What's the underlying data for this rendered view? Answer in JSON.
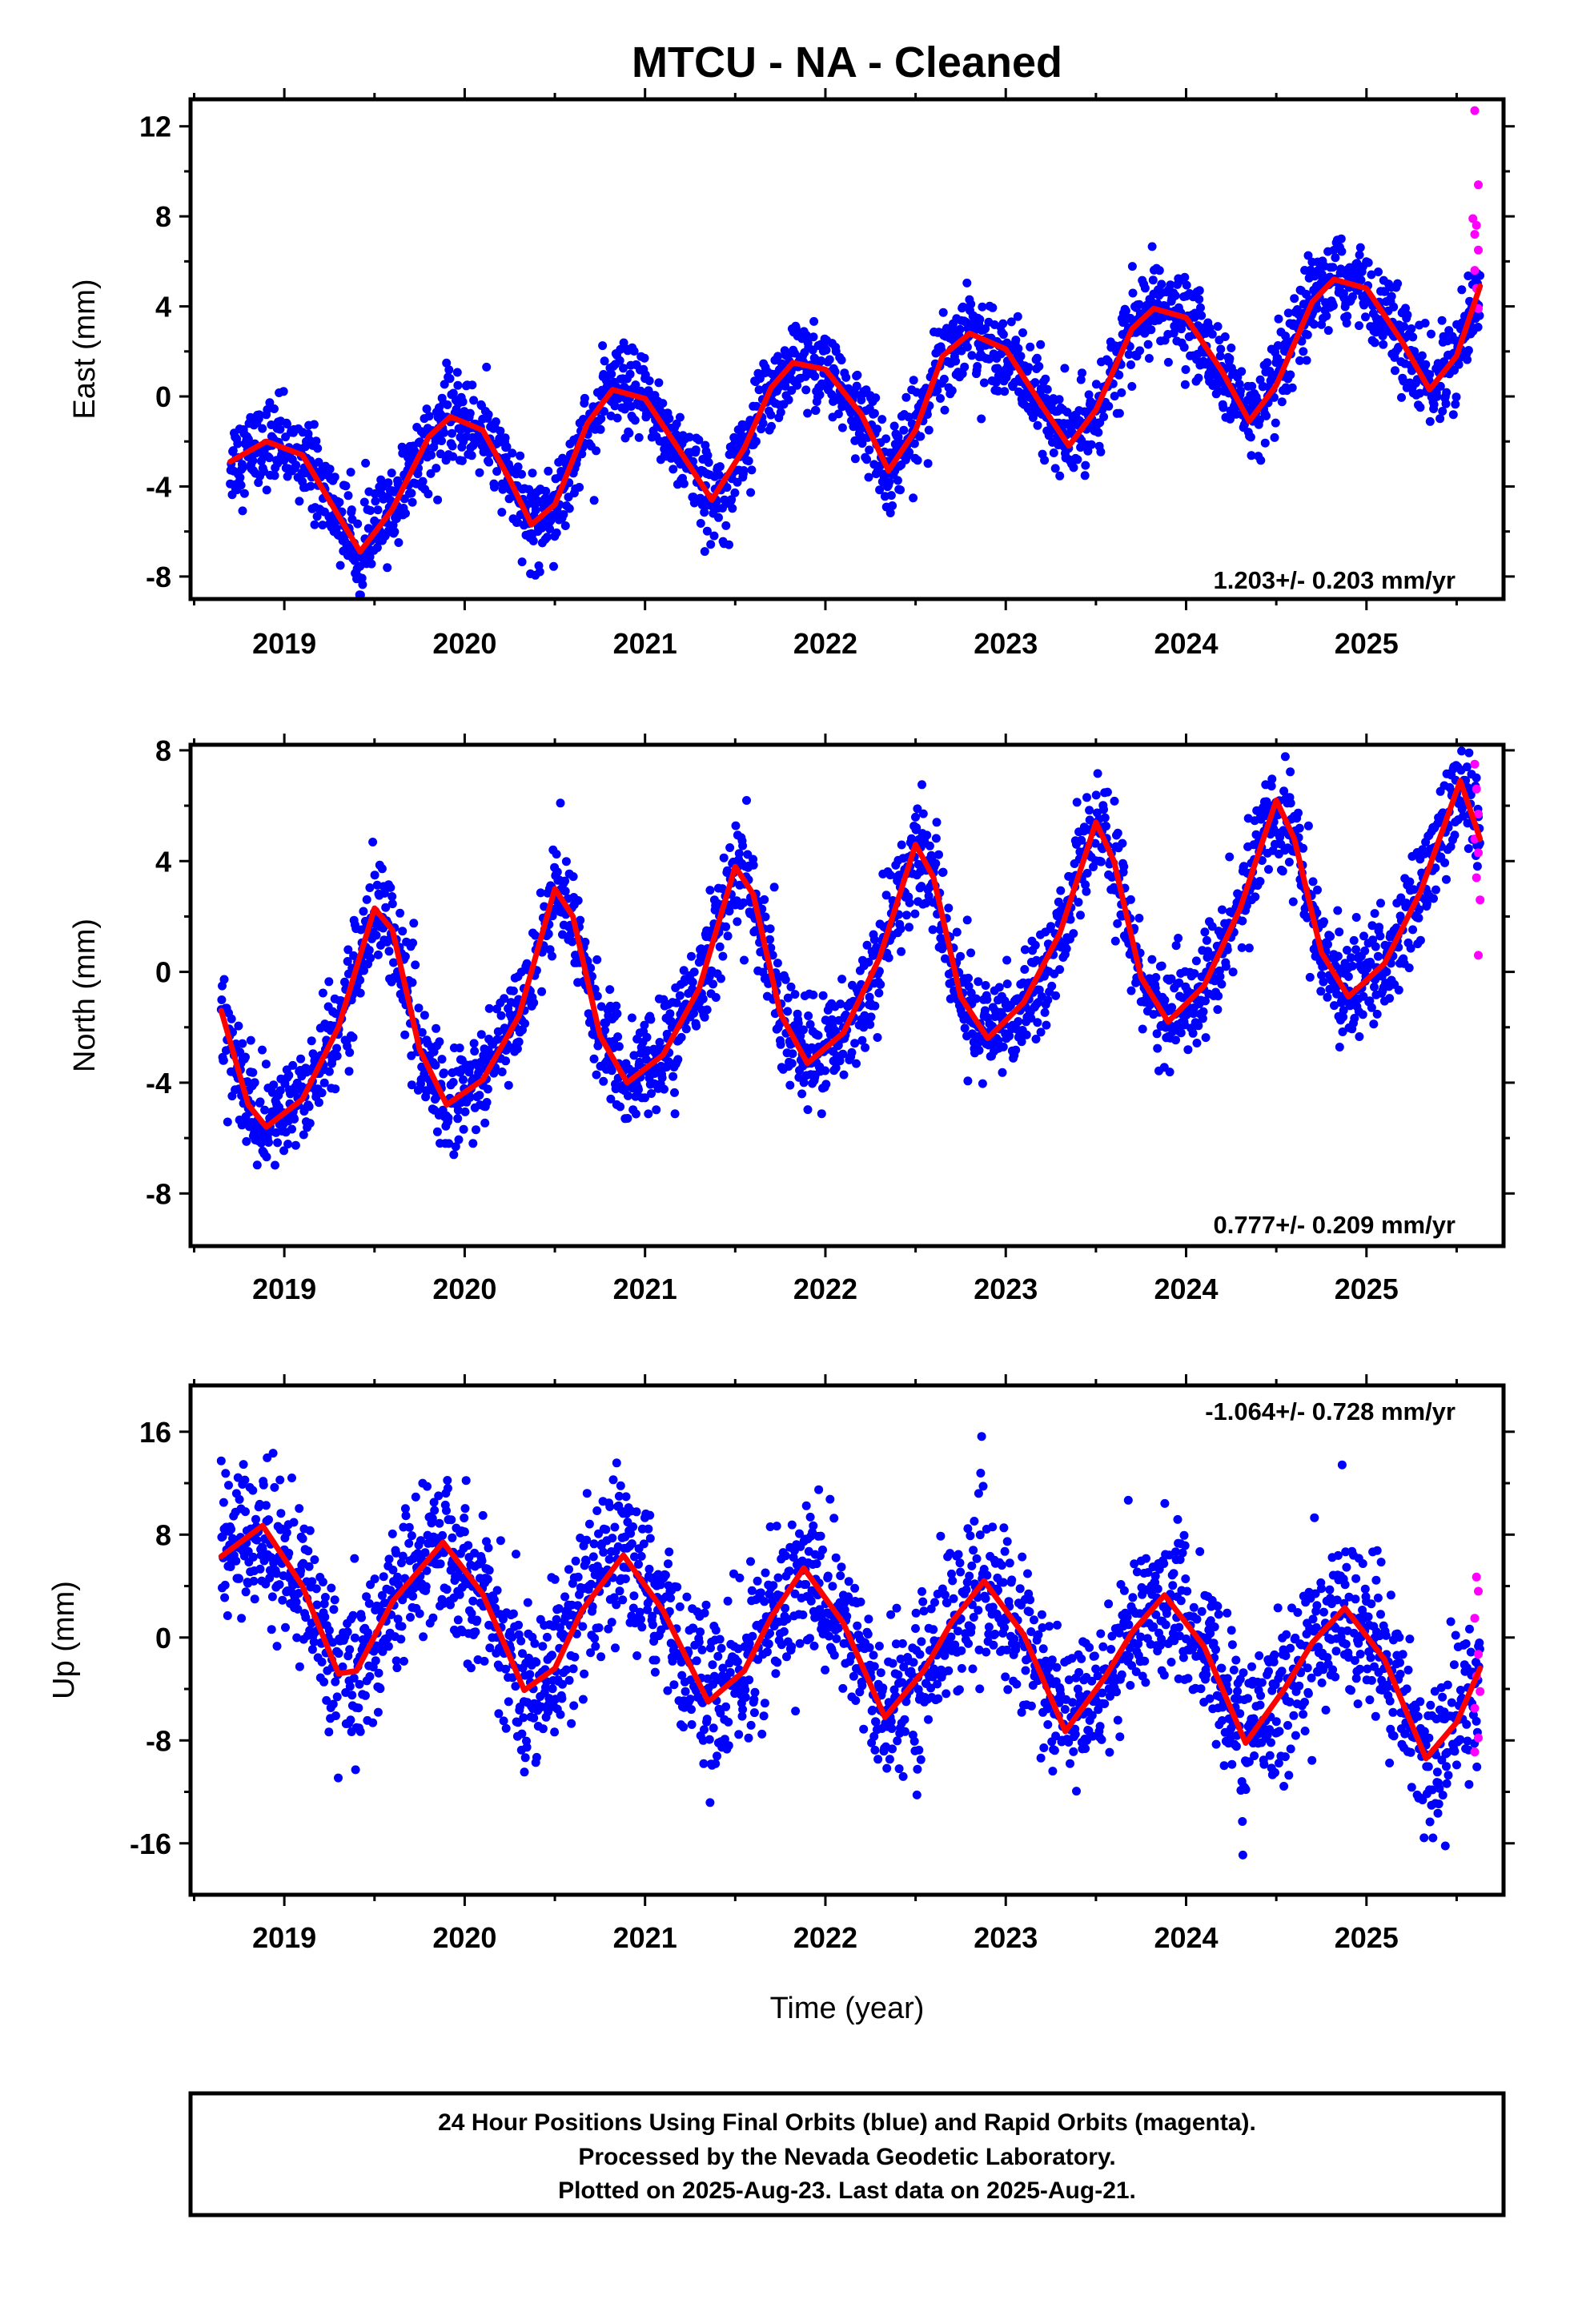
{
  "title": "MTCU  - NA - Cleaned",
  "xlabel": "Time (year)",
  "footer": [
    "24 Hour Positions Using Final Orbits (blue) and Rapid Orbits (magenta).",
    "Processed by the Nevada Geodetic Laboratory.",
    "Plotted on 2025-Aug-23. Last data on 2025-Aug-21."
  ],
  "colors": {
    "final_orbits": "#0000ff",
    "rapid_orbits": "#ff00ff",
    "model_fit": "#ff0000"
  },
  "chart_data": [
    {
      "type": "scatter",
      "ylabel": "East (mm)",
      "rate_label": "1.203+/- 0.203 mm/yr",
      "xlim": [
        2018.48,
        2025.76
      ],
      "ylim": [
        -9,
        13.2
      ],
      "yticks": [
        -8,
        -4,
        0,
        4,
        8,
        12
      ],
      "xticks": [
        2019,
        2020,
        2021,
        2022,
        2023,
        2024,
        2025
      ],
      "trend": {
        "rate": 1.203,
        "rate_sigma": 0.203
      },
      "fit_curve": [
        [
          2018.7,
          -2.9
        ],
        [
          2018.9,
          -2.0
        ],
        [
          2019.1,
          -2.6
        ],
        [
          2019.3,
          -5.3
        ],
        [
          2019.42,
          -6.9
        ],
        [
          2019.6,
          -5.0
        ],
        [
          2019.8,
          -1.8
        ],
        [
          2019.92,
          -0.9
        ],
        [
          2020.1,
          -1.5
        ],
        [
          2020.25,
          -3.7
        ],
        [
          2020.37,
          -5.7
        ],
        [
          2020.5,
          -4.8
        ],
        [
          2020.68,
          -1.2
        ],
        [
          2020.82,
          0.3
        ],
        [
          2021.0,
          -0.1
        ],
        [
          2021.2,
          -2.5
        ],
        [
          2021.37,
          -4.6
        ],
        [
          2021.55,
          -2.3
        ],
        [
          2021.7,
          0.4
        ],
        [
          2021.82,
          1.5
        ],
        [
          2022.0,
          1.2
        ],
        [
          2022.2,
          -0.8
        ],
        [
          2022.35,
          -3.3
        ],
        [
          2022.5,
          -1.5
        ],
        [
          2022.65,
          1.8
        ],
        [
          2022.8,
          2.8
        ],
        [
          2023.0,
          2.1
        ],
        [
          2023.2,
          -0.4
        ],
        [
          2023.35,
          -2.2
        ],
        [
          2023.5,
          -0.6
        ],
        [
          2023.7,
          3.0
        ],
        [
          2023.82,
          3.9
        ],
        [
          2024.0,
          3.5
        ],
        [
          2024.2,
          1.1
        ],
        [
          2024.35,
          -1.1
        ],
        [
          2024.5,
          0.5
        ],
        [
          2024.7,
          4.2
        ],
        [
          2024.82,
          5.2
        ],
        [
          2025.0,
          4.8
        ],
        [
          2025.2,
          2.4
        ],
        [
          2025.35,
          0.3
        ],
        [
          2025.5,
          1.8
        ],
        [
          2025.63,
          4.9
        ]
      ],
      "rapid_points": [
        [
          2025.6,
          12.7
        ],
        [
          2025.62,
          9.4
        ],
        [
          2025.59,
          7.9
        ],
        [
          2025.61,
          7.6
        ],
        [
          2025.6,
          7.2
        ],
        [
          2025.62,
          6.5
        ],
        [
          2025.6,
          5.6
        ],
        [
          2025.61,
          4.8
        ],
        [
          2025.62,
          3.9
        ]
      ]
    },
    {
      "type": "scatter",
      "ylabel": "North (mm)",
      "rate_label": "0.777+/- 0.209 mm/yr",
      "xlim": [
        2018.48,
        2025.76
      ],
      "ylim": [
        -9.9,
        8.2
      ],
      "yticks": [
        -8,
        -4,
        0,
        4,
        8
      ],
      "xticks": [
        2019,
        2020,
        2021,
        2022,
        2023,
        2024,
        2025
      ],
      "trend": {
        "rate": 0.777,
        "rate_sigma": 0.209
      },
      "fit_curve": [
        [
          2018.65,
          -1.4
        ],
        [
          2018.8,
          -4.8
        ],
        [
          2018.9,
          -5.6
        ],
        [
          2019.1,
          -4.6
        ],
        [
          2019.3,
          -2.0
        ],
        [
          2019.5,
          2.3
        ],
        [
          2019.6,
          1.5
        ],
        [
          2019.75,
          -2.8
        ],
        [
          2019.9,
          -4.8
        ],
        [
          2020.1,
          -3.9
        ],
        [
          2020.3,
          -1.6
        ],
        [
          2020.5,
          3.0
        ],
        [
          2020.6,
          2.0
        ],
        [
          2020.75,
          -2.3
        ],
        [
          2020.9,
          -4.0
        ],
        [
          2021.1,
          -3.0
        ],
        [
          2021.3,
          -0.6
        ],
        [
          2021.5,
          3.8
        ],
        [
          2021.6,
          2.8
        ],
        [
          2021.75,
          -1.5
        ],
        [
          2021.9,
          -3.3
        ],
        [
          2022.1,
          -2.2
        ],
        [
          2022.3,
          0.5
        ],
        [
          2022.5,
          4.6
        ],
        [
          2022.6,
          3.4
        ],
        [
          2022.75,
          -0.9
        ],
        [
          2022.9,
          -2.4
        ],
        [
          2023.1,
          -1.1
        ],
        [
          2023.3,
          1.4
        ],
        [
          2023.5,
          5.4
        ],
        [
          2023.6,
          4.0
        ],
        [
          2023.75,
          -0.2
        ],
        [
          2023.9,
          -1.8
        ],
        [
          2024.1,
          -0.5
        ],
        [
          2024.3,
          2.3
        ],
        [
          2024.5,
          6.2
        ],
        [
          2024.6,
          4.8
        ],
        [
          2024.75,
          0.7
        ],
        [
          2024.9,
          -0.9
        ],
        [
          2025.1,
          0.3
        ],
        [
          2025.3,
          2.9
        ],
        [
          2025.52,
          6.9
        ],
        [
          2025.63,
          4.8
        ]
      ],
      "rapid_points": [
        [
          2025.6,
          7.5
        ],
        [
          2025.61,
          6.6
        ],
        [
          2025.62,
          5.7
        ],
        [
          2025.6,
          4.8
        ],
        [
          2025.62,
          4.3
        ],
        [
          2025.61,
          3.4
        ],
        [
          2025.63,
          2.6
        ],
        [
          2025.62,
          0.6
        ]
      ]
    },
    {
      "type": "scatter",
      "ylabel": "Up (mm)",
      "rate_label": "-1.064+/- 0.728 mm/yr",
      "xlim": [
        2018.48,
        2025.76
      ],
      "ylim": [
        -20,
        19.6
      ],
      "yticks": [
        -16,
        -8,
        0,
        8,
        16
      ],
      "xticks": [
        2019,
        2020,
        2021,
        2022,
        2023,
        2024,
        2025
      ],
      "trend": {
        "rate": -1.064,
        "rate_sigma": 0.728
      },
      "fit_curve": [
        [
          2018.65,
          6.3
        ],
        [
          2018.88,
          8.7
        ],
        [
          2019.1,
          4.0
        ],
        [
          2019.3,
          -2.8
        ],
        [
          2019.4,
          -2.6
        ],
        [
          2019.6,
          2.8
        ],
        [
          2019.88,
          7.4
        ],
        [
          2020.1,
          3.4
        ],
        [
          2020.33,
          -4.1
        ],
        [
          2020.5,
          -2.4
        ],
        [
          2020.65,
          2.1
        ],
        [
          2020.88,
          6.4
        ],
        [
          2021.1,
          2.1
        ],
        [
          2021.35,
          -5.0
        ],
        [
          2021.55,
          -2.6
        ],
        [
          2021.7,
          1.6
        ],
        [
          2021.88,
          5.4
        ],
        [
          2022.1,
          1.1
        ],
        [
          2022.33,
          -6.2
        ],
        [
          2022.55,
          -2.5
        ],
        [
          2022.7,
          1.2
        ],
        [
          2022.88,
          4.4
        ],
        [
          2023.1,
          0.2
        ],
        [
          2023.33,
          -7.3
        ],
        [
          2023.55,
          -3.1
        ],
        [
          2023.7,
          0.4
        ],
        [
          2023.88,
          3.3
        ],
        [
          2024.1,
          -0.7
        ],
        [
          2024.33,
          -8.2
        ],
        [
          2024.55,
          -3.9
        ],
        [
          2024.7,
          -0.4
        ],
        [
          2024.88,
          2.3
        ],
        [
          2025.1,
          -1.7
        ],
        [
          2025.33,
          -9.4
        ],
        [
          2025.5,
          -6.6
        ],
        [
          2025.63,
          -2.4
        ]
      ],
      "rapid_points": [
        [
          2025.61,
          4.7
        ],
        [
          2025.62,
          3.6
        ],
        [
          2025.6,
          1.5
        ],
        [
          2025.62,
          -1.3
        ],
        [
          2025.61,
          -3.0
        ],
        [
          2025.63,
          -4.2
        ],
        [
          2025.6,
          -5.5
        ],
        [
          2025.62,
          -7.8
        ],
        [
          2025.6,
          -8.9
        ]
      ]
    }
  ]
}
